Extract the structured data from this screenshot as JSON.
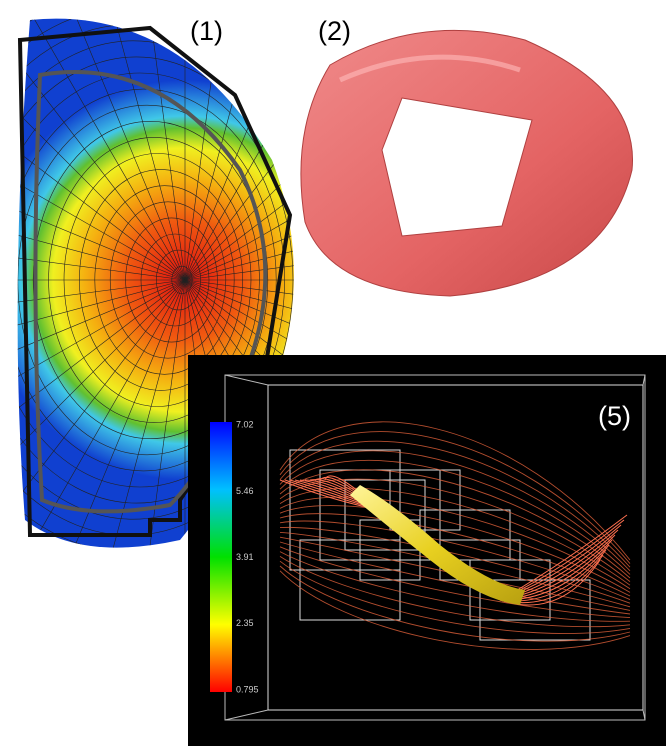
{
  "panels": [
    {
      "label": "(1)"
    },
    {
      "label": "(2)"
    },
    {
      "label": "(5)",
      "colorbar": {
        "ticks": [
          7.02,
          5.46,
          3.91,
          2.35,
          0.795
        ]
      }
    }
  ]
}
